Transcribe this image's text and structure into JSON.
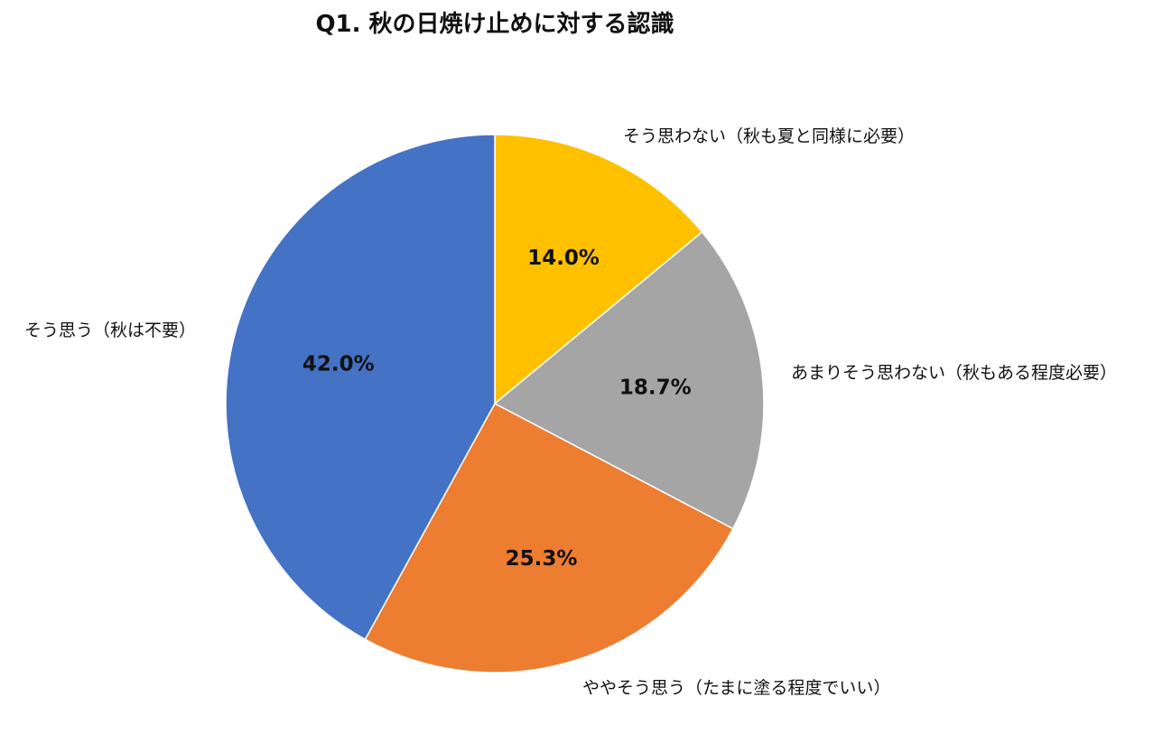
{
  "chart_data": {
    "type": "pie",
    "title": "Q1. 秋の日焼け止めに対する認識",
    "start_angle_deg": 0,
    "direction": "clockwise",
    "legend": "none",
    "slices": [
      {
        "label": "そう思わない（秋も夏と同様に必要）",
        "value": 14.0,
        "display": "14.0%",
        "color": "#FFC000"
      },
      {
        "label": "あまりそう思わない（秋もある程度必要）",
        "value": 18.7,
        "display": "18.7%",
        "color": "#A5A5A5"
      },
      {
        "label": "ややそう思う（たまに塗る程度でいい）",
        "value": 25.3,
        "display": "25.3%",
        "color": "#ED7D31"
      },
      {
        "label": "そう思う（秋は不要）",
        "value": 42.0,
        "display": "42.0%",
        "color": "#4472C4"
      }
    ]
  }
}
